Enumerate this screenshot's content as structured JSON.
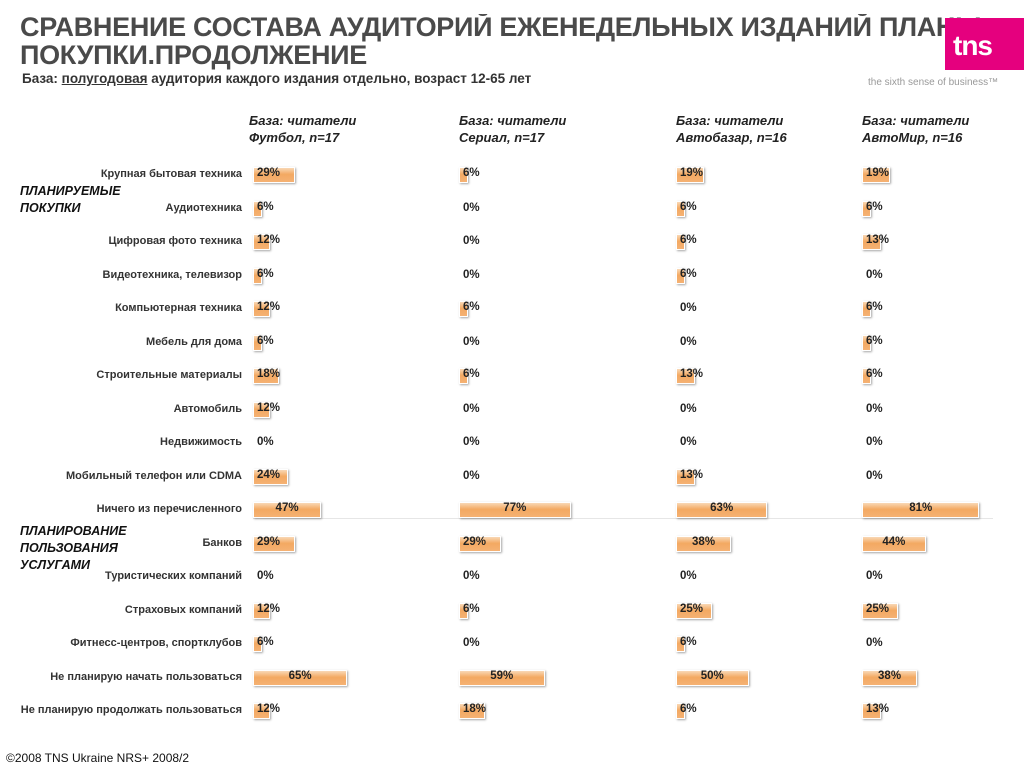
{
  "title_lines": [
    "СРАВНЕНИЕ СОСТАВА АУДИТОРИЙ ЕЖЕНЕДЕЛЬНЫХ ИЗДАНИЙ ПЛАНЫ",
    "ПОКУПКИ.ПРОДОЛЖЕНИЕ"
  ],
  "subtitle": {
    "prefix": "База: ",
    "underlined": "полугодовая",
    "suffix": " аудитория каждого издания отдельно, возраст 12-65 лет"
  },
  "logo": {
    "text": "tns",
    "mark": "™",
    "tagline": "the sixth sense of business™",
    "color": "#e5007e"
  },
  "footer": "©2008 TNS Ukraine  NRS+ 2008/2",
  "groups": [
    {
      "label": [
        "ПЛАНИРУЕМЫЕ",
        "ПОКУПКИ"
      ]
    },
    {
      "label": [
        "ПЛАНИРОВАНИЕ",
        "ПОЛЬЗОВАНИЯ",
        "УСЛУГАМИ"
      ]
    }
  ],
  "chart_data": {
    "type": "bar",
    "orientation": "horizontal",
    "bar_color": "#f3a962",
    "categories": [
      "Крупная бытовая техника",
      "Аудиотехника",
      "Цифровая фото техника",
      "Видеотехника, телевизор",
      "Компьютерная техника",
      "Мебель для дома",
      "Строительные материалы",
      "Автомобиль",
      "Недвижимость",
      "Мобильный телефон или CDMA",
      "Ничего из перечисленного",
      "Банков",
      "Туристических компаний",
      "Страховых компаний",
      "Фитнесс-центров, спортклубов",
      "Не планирую начать пользоваться",
      "Не планирую продолжать пользоваться"
    ],
    "series": [
      {
        "header": [
          "База: читатели",
          "Футбол, n=17"
        ],
        "values": [
          29,
          6,
          12,
          6,
          12,
          6,
          18,
          12,
          0,
          24,
          47,
          29,
          0,
          12,
          6,
          65,
          12
        ]
      },
      {
        "header": [
          "База: читатели",
          "Сериал, n=17"
        ],
        "values": [
          6,
          0,
          0,
          0,
          6,
          0,
          6,
          0,
          0,
          0,
          77,
          29,
          0,
          6,
          0,
          59,
          18
        ]
      },
      {
        "header": [
          "База: читатели",
          "Автобазар, n=16"
        ],
        "values": [
          19,
          6,
          6,
          6,
          0,
          0,
          13,
          0,
          0,
          13,
          63,
          38,
          0,
          25,
          6,
          50,
          6
        ]
      },
      {
        "header": [
          "База: читатели",
          "АвтоМир, n=16"
        ],
        "values": [
          19,
          6,
          13,
          0,
          6,
          6,
          6,
          0,
          0,
          0,
          81,
          44,
          0,
          25,
          0,
          38,
          13
        ]
      }
    ],
    "value_suffix": "%"
  }
}
